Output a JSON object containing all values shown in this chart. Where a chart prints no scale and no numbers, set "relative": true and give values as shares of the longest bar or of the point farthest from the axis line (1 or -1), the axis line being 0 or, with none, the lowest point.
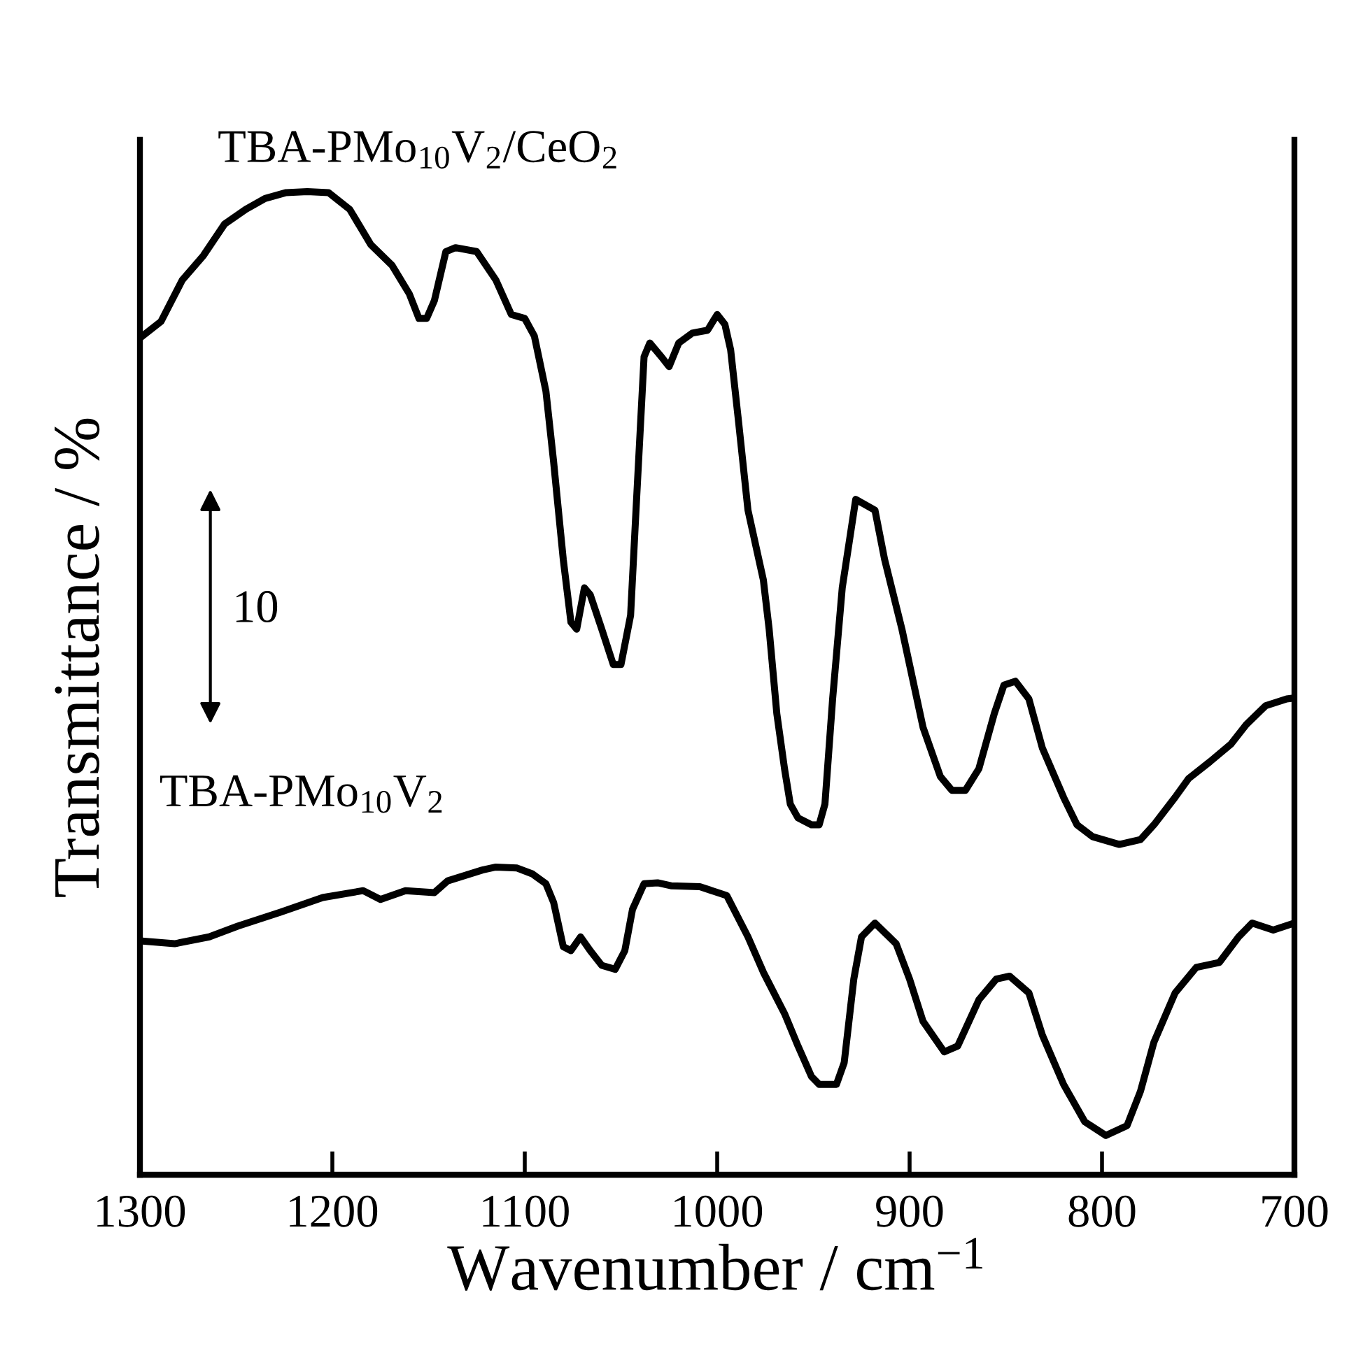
{
  "chart_data": {
    "type": "line",
    "xlabel": "Wavenumber / cm$^{−1}$",
    "ylabel": "Transmittance / %",
    "relative": true,
    "xlim": [
      1300,
      700
    ],
    "xticks": [
      1300,
      1200,
      1100,
      1000,
      900,
      800,
      700
    ],
    "annotations": [
      "10"
    ],
    "series": [
      {
        "name": "TBA-PMo$_{10}$V$_{2}$/CeO$_{2}$",
        "color": "#000000",
        "x": [
          1300,
          1289,
          1278,
          1267,
          1256,
          1245,
          1235,
          1224,
          1213,
          1202,
          1191,
          1180,
          1169,
          1160,
          1155,
          1151,
          1147,
          1141,
          1136,
          1125,
          1115,
          1107,
          1100,
          1095,
          1089,
          1085,
          1080,
          1076,
          1073,
          1069,
          1066,
          1060,
          1054,
          1050,
          1045,
          1042,
          1038,
          1035,
          1029,
          1025,
          1020,
          1013,
          1005,
          1000,
          996,
          993,
          989,
          984,
          976,
          973,
          969,
          965,
          962,
          958,
          951,
          947,
          944,
          940,
          935,
          928,
          918,
          913,
          904,
          893,
          884,
          878,
          871,
          864,
          856,
          851,
          845,
          838,
          831,
          820,
          813,
          805,
          791,
          780,
          773,
          762,
          755,
          744,
          733,
          725,
          715,
          704,
          700
        ],
        "values": [
          0.851,
          0.868,
          0.91,
          0.935,
          0.967,
          0.982,
          0.993,
          0.999,
          1.0,
          0.999,
          0.982,
          0.946,
          0.925,
          0.896,
          0.871,
          0.871,
          0.889,
          0.939,
          0.943,
          0.939,
          0.91,
          0.875,
          0.871,
          0.853,
          0.797,
          0.725,
          0.626,
          0.562,
          0.555,
          0.597,
          0.59,
          0.555,
          0.519,
          0.519,
          0.569,
          0.683,
          0.832,
          0.846,
          0.832,
          0.822,
          0.846,
          0.856,
          0.859,
          0.875,
          0.865,
          0.839,
          0.768,
          0.676,
          0.605,
          0.555,
          0.469,
          0.413,
          0.377,
          0.363,
          0.356,
          0.356,
          0.377,
          0.484,
          0.597,
          0.687,
          0.676,
          0.626,
          0.555,
          0.455,
          0.405,
          0.391,
          0.391,
          0.413,
          0.469,
          0.498,
          0.502,
          0.484,
          0.434,
          0.384,
          0.356,
          0.344,
          0.336,
          0.341,
          0.356,
          0.384,
          0.403,
          0.42,
          0.438,
          0.458,
          0.477,
          0.484,
          0.485
        ]
      },
      {
        "name": "TBA-PMo$_{10}$V$_{2}$",
        "color": "#000000",
        "x": [
          1300,
          1282,
          1264,
          1249,
          1227,
          1205,
          1184,
          1175,
          1162,
          1147,
          1140,
          1122,
          1115,
          1104,
          1096,
          1089,
          1085,
          1080,
          1076,
          1071,
          1066,
          1060,
          1053,
          1048,
          1044,
          1038,
          1031,
          1024,
          1009,
          995,
          984,
          976,
          965,
          958,
          951,
          947,
          938,
          934,
          929,
          925,
          918,
          907,
          900,
          893,
          882,
          875,
          864,
          855,
          848,
          838,
          831,
          820,
          809,
          798,
          787,
          780,
          773,
          762,
          751,
          739,
          729,
          722,
          711,
          700
        ],
        "values": [
          0.238,
          0.235,
          0.242,
          0.253,
          0.267,
          0.282,
          0.289,
          0.28,
          0.289,
          0.287,
          0.299,
          0.31,
          0.313,
          0.312,
          0.306,
          0.296,
          0.277,
          0.232,
          0.228,
          0.242,
          0.228,
          0.213,
          0.209,
          0.228,
          0.27,
          0.296,
          0.297,
          0.294,
          0.293,
          0.284,
          0.242,
          0.206,
          0.164,
          0.131,
          0.1,
          0.092,
          0.092,
          0.114,
          0.199,
          0.242,
          0.256,
          0.235,
          0.199,
          0.156,
          0.125,
          0.131,
          0.178,
          0.199,
          0.202,
          0.185,
          0.142,
          0.092,
          0.054,
          0.04,
          0.05,
          0.085,
          0.135,
          0.185,
          0.211,
          0.216,
          0.242,
          0.256,
          0.249,
          0.256
        ]
      }
    ]
  }
}
